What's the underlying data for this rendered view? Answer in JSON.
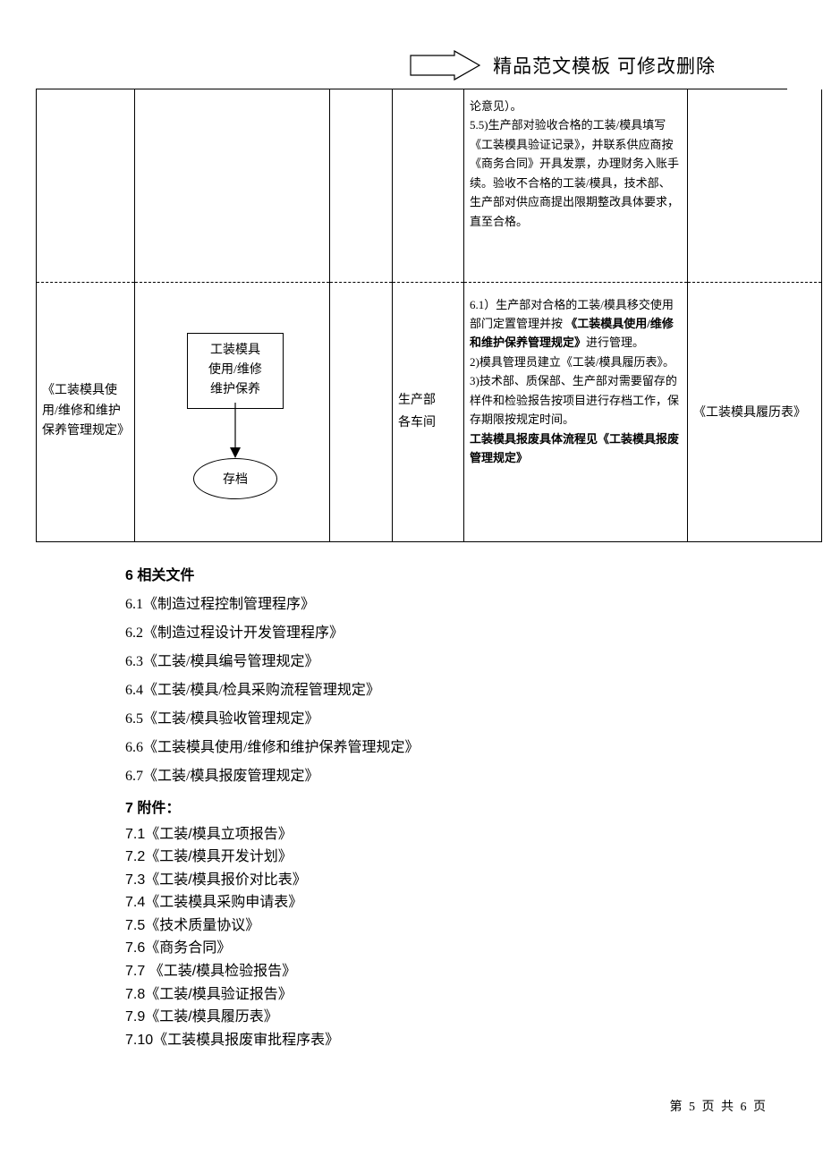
{
  "header": {
    "title": "精品范文模板  可修改删除",
    "arrow": {
      "stroke": "#000000",
      "fill": "#ffffff"
    }
  },
  "table": {
    "colors": {
      "border": "#000000",
      "text": "#000000"
    },
    "row1": {
      "col0": "",
      "col3": "",
      "col4": "论意见）。\n5.5)生产部对验收合格的工装/模具填写《工装模具验证记录》，并联系供应商按《商务合同》开具发票，办理财务入账手续。验收不合格的工装/模具，技术部、生产部对供应商提出限期整改具体要求，直至合格。",
      "col5": ""
    },
    "row2": {
      "col0": "《工装模具使用/维修和维护保养管理规定》",
      "flow": {
        "box1_line1": "工装模具",
        "box1_line2": "使用/维修",
        "box1_line3": "维护保养",
        "oval": "存档"
      },
      "col3_line1": "生产部",
      "col3_line2": "各车间",
      "col4_p1": "6.1）生产部对合格的工装/模具移交使用部门定置管理并按",
      "col4_b1": "《工装模具使用/维修和维护保养管理规定》",
      "col4_p1b": "进行管理。",
      "col4_p2": "2)模具管理员建立《工装/模具履历表》。",
      "col4_p3": "3)技术部、质保部、生产部对需要留存的样件和检验报告按项目进行存档工作，保存期限按规定时间。",
      "col4_b2": "工装模具报废具体流程见《工装模具报废管理规定》",
      "col5": "《工装模具履历表》"
    }
  },
  "sections": {
    "s6_title": "6 相关文件",
    "s6_items": [
      "6.1《制造过程控制管理程序》",
      "6.2《制造过程设计开发管理程序》",
      "6.3《工装/模具编号管理规定》",
      "6.4《工装/模具/检具采购流程管理规定》",
      "6.5《工装/模具验收管理规定》",
      "6.6《工装模具使用/维修和维护保养管理规定》",
      "6.7《工装/模具报废管理规定》"
    ],
    "s7_title": "7 附件：",
    "s7_items": [
      "7.1《工装/模具立项报告》",
      "7.2《工装/模具开发计划》",
      "7.3《工装/模具报价对比表》",
      "7.4《工装模具采购申请表》",
      "7.5《技术质量协议》",
      "7.6《商务合同》",
      "7.7 《工装/模具检验报告》",
      "7.8《工装/模具验证报告》",
      "7.9《工装/模具履历表》",
      "7.10《工装模具报废审批程序表》"
    ]
  },
  "pager": "第 5 页 共 6 页"
}
